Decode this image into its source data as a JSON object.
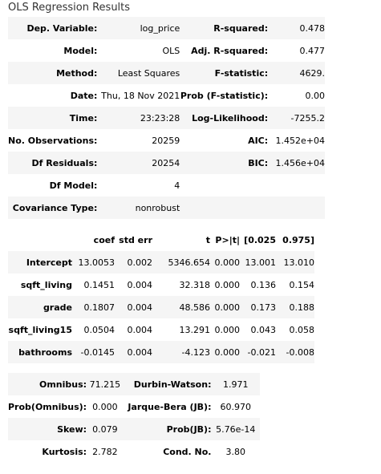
{
  "title": "OLS Regression Results",
  "summary": {
    "rows": [
      {
        "l1": "Dep. Variable:",
        "v1": "log_price",
        "l2": "R-squared:",
        "v2": "0.478"
      },
      {
        "l1": "Model:",
        "v1": "OLS",
        "l2": "Adj. R-squared:",
        "v2": "0.477"
      },
      {
        "l1": "Method:",
        "v1": "Least Squares",
        "l2": "F-statistic:",
        "v2": "4629."
      },
      {
        "l1": "Date:",
        "v1": "Thu, 18 Nov 2021",
        "l2": "Prob (F-statistic):",
        "v2": "0.00"
      },
      {
        "l1": "Time:",
        "v1": "23:23:28",
        "l2": "Log-Likelihood:",
        "v2": "-7255.2"
      },
      {
        "l1": "No. Observations:",
        "v1": "20259",
        "l2": "AIC:",
        "v2": "1.452e+04"
      },
      {
        "l1": "Df Residuals:",
        "v1": "20254",
        "l2": "BIC:",
        "v2": "1.456e+04"
      },
      {
        "l1": "Df Model:",
        "v1": "4",
        "l2": "",
        "v2": ""
      },
      {
        "l1": "Covariance Type:",
        "v1": "nonrobust",
        "l2": "",
        "v2": ""
      }
    ]
  },
  "coefficients": {
    "headers": [
      "",
      "coef",
      "std err",
      "t",
      "P>|t|",
      "[0.025",
      "0.975]"
    ],
    "rows": [
      [
        "Intercept",
        "13.0053",
        "0.002",
        "5346.654",
        "0.000",
        "13.001",
        "13.010"
      ],
      [
        "sqft_living",
        "0.1451",
        "0.004",
        "32.318",
        "0.000",
        "0.136",
        "0.154"
      ],
      [
        "grade",
        "0.1807",
        "0.004",
        "48.586",
        "0.000",
        "0.173",
        "0.188"
      ],
      [
        "sqft_living15",
        "0.0504",
        "0.004",
        "13.291",
        "0.000",
        "0.043",
        "0.058"
      ],
      [
        "bathrooms",
        "-0.0145",
        "0.004",
        "-4.123",
        "0.000",
        "-0.021",
        "-0.008"
      ]
    ]
  },
  "diagnostics": {
    "rows": [
      {
        "l1": "Omnibus:",
        "v1": "71.215",
        "l2": "Durbin-Watson:",
        "v2": "1.971"
      },
      {
        "l1": "Prob(Omnibus):",
        "v1": "0.000",
        "l2": "Jarque-Bera (JB):",
        "v2": "60.970"
      },
      {
        "l1": "Skew:",
        "v1": "0.079",
        "l2": "Prob(JB):",
        "v2": "5.76e-14"
      },
      {
        "l1": "Kurtosis:",
        "v1": "2.782",
        "l2": "Cond. No.",
        "v2": "3.80"
      }
    ]
  }
}
